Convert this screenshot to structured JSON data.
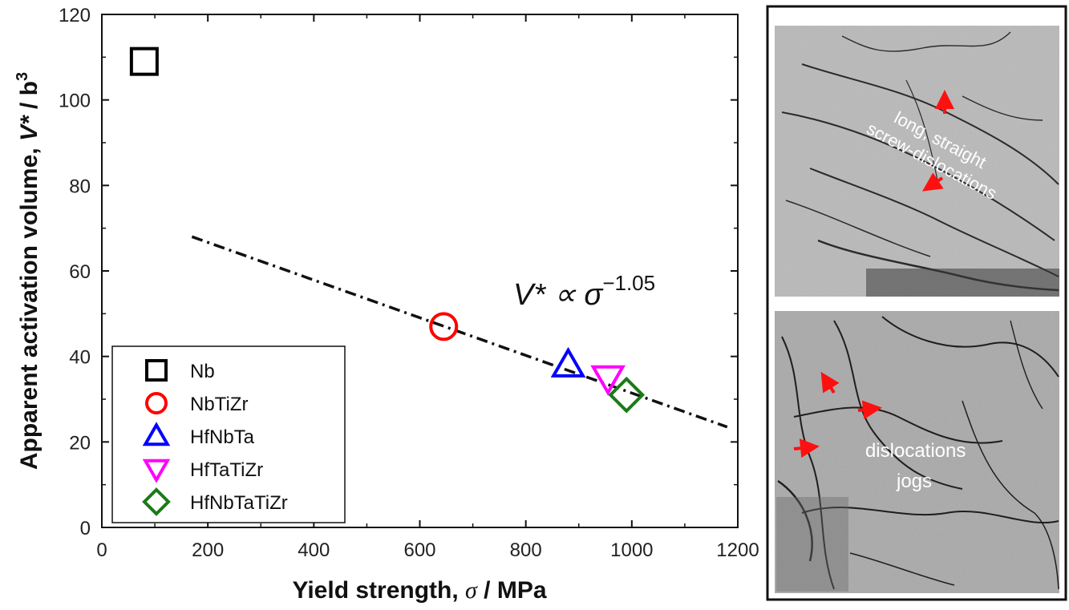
{
  "chart_data": {
    "type": "scatter",
    "xlabel_main": "Yield strength, ",
    "xlabel_symbol": "σ",
    "xlabel_unit": " / MPa",
    "ylabel_main": "Apparent activation volume, ",
    "ylabel_symbol": "V*",
    "ylabel_unit": " / b",
    "ylabel_sup": "3",
    "xlim": [
      0,
      1200
    ],
    "ylim": [
      0,
      120
    ],
    "x_ticks": [
      "0",
      "200",
      "400",
      "600",
      "800",
      "1000",
      "1200"
    ],
    "y_ticks": [
      "0",
      "20",
      "40",
      "60",
      "80",
      "100",
      "120"
    ],
    "grid": false,
    "legend_position": "bottom-left",
    "series": [
      {
        "name": "Nb",
        "marker": "square",
        "color": "#000000",
        "x": [
          80
        ],
        "y": [
          109
        ]
      },
      {
        "name": "NbTiZr",
        "marker": "circle",
        "color": "#ff0000",
        "x": [
          645
        ],
        "y": [
          47
        ]
      },
      {
        "name": "HfNbTa",
        "marker": "triangle-up",
        "color": "#0000ff",
        "x": [
          880
        ],
        "y": [
          38
        ]
      },
      {
        "name": "HfTaTiZr",
        "marker": "triangle-down",
        "color": "#ff00ff",
        "x": [
          955
        ],
        "y": [
          35
        ]
      },
      {
        "name": "HfNbTaTiZr",
        "marker": "diamond",
        "color": "#1a7a1a",
        "x": [
          990
        ],
        "y": [
          31
        ]
      }
    ],
    "fit_line": {
      "style": "dash-dot",
      "color": "#000000",
      "x": [
        170,
        1180
      ],
      "y": [
        68,
        23.5
      ]
    },
    "fit_annotation": {
      "main": "V* ∝ σ",
      "sup": "−1.05"
    }
  },
  "panels": {
    "top": {
      "text_lines": [
        "long, straight",
        "screw-dislocations"
      ]
    },
    "bottom": {
      "text_lines": [
        "dislocations",
        "jogs"
      ]
    },
    "arrow_color": "#ff1010"
  }
}
